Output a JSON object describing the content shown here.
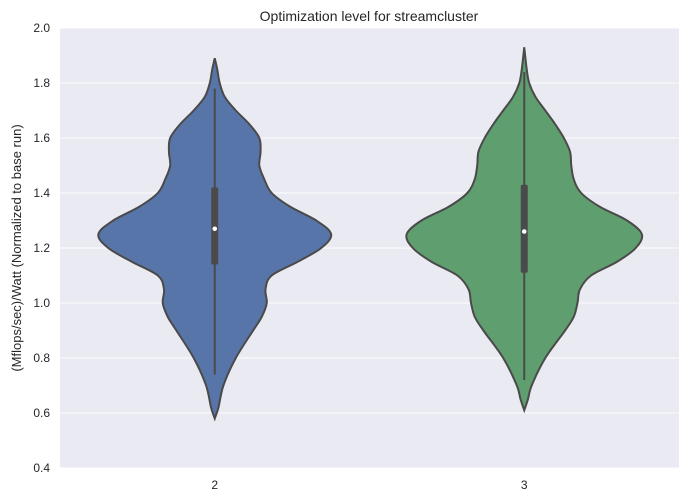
{
  "chart_data": {
    "type": "violin",
    "title": "Optimization level for streamcluster",
    "xlabel": "",
    "ylabel": "(Mflops/sec)/Watt (Normalized to base run)",
    "categories": [
      "2",
      "3"
    ],
    "ylim": [
      0.4,
      2.0
    ],
    "yticks": [
      0.4,
      0.6,
      0.8,
      1.0,
      1.2,
      1.4,
      1.6,
      1.8,
      2.0
    ],
    "ytick_labels": [
      "0.4",
      "0.6",
      "0.8",
      "1.0",
      "1.2",
      "1.4",
      "1.6",
      "1.8",
      "2.0"
    ],
    "grid": true,
    "legend": false,
    "colors": {
      "background": "#eaeaf2",
      "grid": "#ffffff",
      "outline": "#4a4a4a",
      "median": "#ffffff"
    },
    "series": [
      {
        "category": "2",
        "color": "#5875a9",
        "min": 0.58,
        "max": 1.89,
        "q1": 1.14,
        "median": 1.27,
        "q3": 1.42,
        "whisker_low": 0.74,
        "whisker_high": 1.78,
        "density": [
          [
            0.58,
            0.0
          ],
          [
            0.62,
            0.03
          ],
          [
            0.7,
            0.07
          ],
          [
            0.8,
            0.17
          ],
          [
            0.9,
            0.31
          ],
          [
            0.95,
            0.38
          ],
          [
            1.0,
            0.42
          ],
          [
            1.05,
            0.41
          ],
          [
            1.1,
            0.46
          ],
          [
            1.15,
            0.67
          ],
          [
            1.2,
            0.86
          ],
          [
            1.25,
            0.94
          ],
          [
            1.3,
            0.82
          ],
          [
            1.35,
            0.61
          ],
          [
            1.4,
            0.46
          ],
          [
            1.45,
            0.4
          ],
          [
            1.5,
            0.36
          ],
          [
            1.55,
            0.37
          ],
          [
            1.6,
            0.36
          ],
          [
            1.65,
            0.28
          ],
          [
            1.7,
            0.17
          ],
          [
            1.75,
            0.08
          ],
          [
            1.8,
            0.04
          ],
          [
            1.85,
            0.02
          ],
          [
            1.89,
            0.0
          ]
        ]
      },
      {
        "category": "3",
        "color": "#5f9e6e",
        "min": 0.61,
        "max": 1.93,
        "q1": 1.11,
        "median": 1.26,
        "q3": 1.43,
        "whisker_low": 0.72,
        "whisker_high": 1.84,
        "density": [
          [
            0.61,
            0.0
          ],
          [
            0.65,
            0.03
          ],
          [
            0.7,
            0.06
          ],
          [
            0.8,
            0.17
          ],
          [
            0.9,
            0.33
          ],
          [
            0.95,
            0.4
          ],
          [
            1.0,
            0.43
          ],
          [
            1.05,
            0.45
          ],
          [
            1.1,
            0.54
          ],
          [
            1.15,
            0.75
          ],
          [
            1.2,
            0.9
          ],
          [
            1.25,
            0.95
          ],
          [
            1.3,
            0.83
          ],
          [
            1.35,
            0.61
          ],
          [
            1.4,
            0.46
          ],
          [
            1.45,
            0.4
          ],
          [
            1.5,
            0.38
          ],
          [
            1.55,
            0.37
          ],
          [
            1.6,
            0.32
          ],
          [
            1.65,
            0.25
          ],
          [
            1.7,
            0.17
          ],
          [
            1.75,
            0.09
          ],
          [
            1.8,
            0.04
          ],
          [
            1.85,
            0.02
          ],
          [
            1.93,
            0.0
          ]
        ]
      }
    ]
  }
}
